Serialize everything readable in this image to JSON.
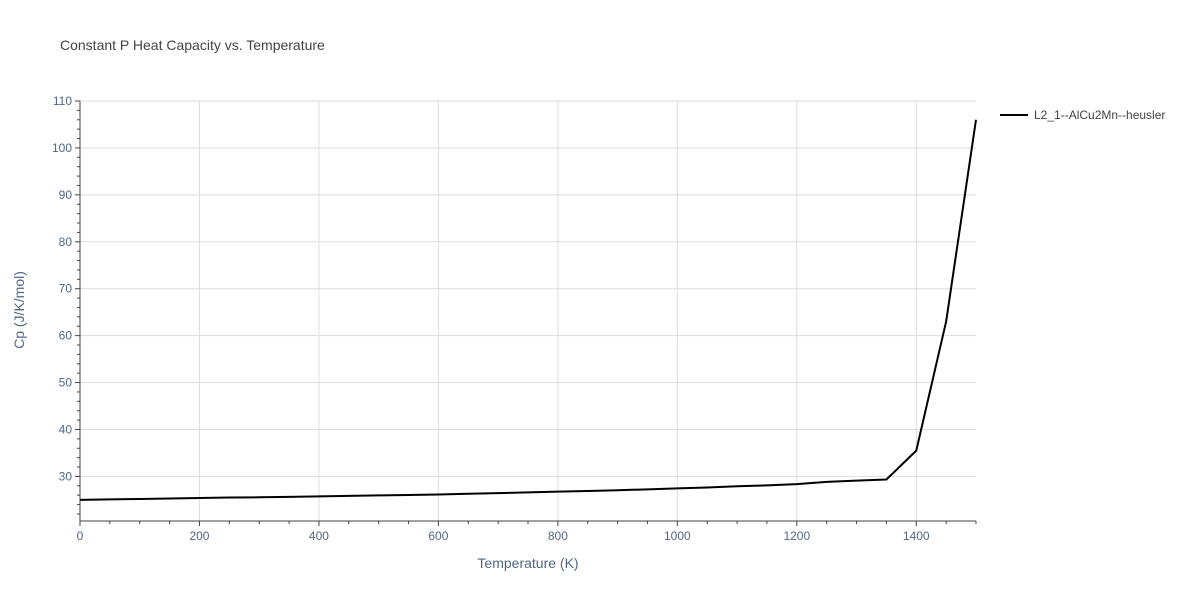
{
  "chart_data": {
    "type": "line",
    "title": "Constant P Heat Capacity vs. Temperature",
    "xlabel": "Temperature (K)",
    "ylabel": "Cp (J/K/mol)",
    "xlim": [
      0,
      1500
    ],
    "ylim": [
      20.5,
      110
    ],
    "x_ticks": [
      0,
      200,
      400,
      600,
      800,
      1000,
      1200,
      1400
    ],
    "y_ticks": [
      30,
      40,
      50,
      60,
      70,
      80,
      90,
      100,
      110
    ],
    "grid": true,
    "legend_position": "top-right outside",
    "series": [
      {
        "name": "L2_1--AlCu2Mn--heusler",
        "color": "#000000",
        "x": [
          0,
          50,
          100,
          150,
          200,
          250,
          300,
          350,
          400,
          450,
          500,
          550,
          600,
          650,
          700,
          750,
          800,
          850,
          900,
          950,
          1000,
          1050,
          1100,
          1150,
          1200,
          1250,
          1300,
          1350,
          1400,
          1450,
          1500
        ],
        "y": [
          25.0,
          25.1,
          25.2,
          25.3,
          25.4,
          25.5,
          25.55,
          25.65,
          25.75,
          25.85,
          25.95,
          26.05,
          26.15,
          26.3,
          26.45,
          26.6,
          26.75,
          26.9,
          27.05,
          27.25,
          27.45,
          27.65,
          27.9,
          28.1,
          28.35,
          28.85,
          29.1,
          29.35,
          35.5,
          63.0,
          106.0
        ]
      }
    ]
  }
}
